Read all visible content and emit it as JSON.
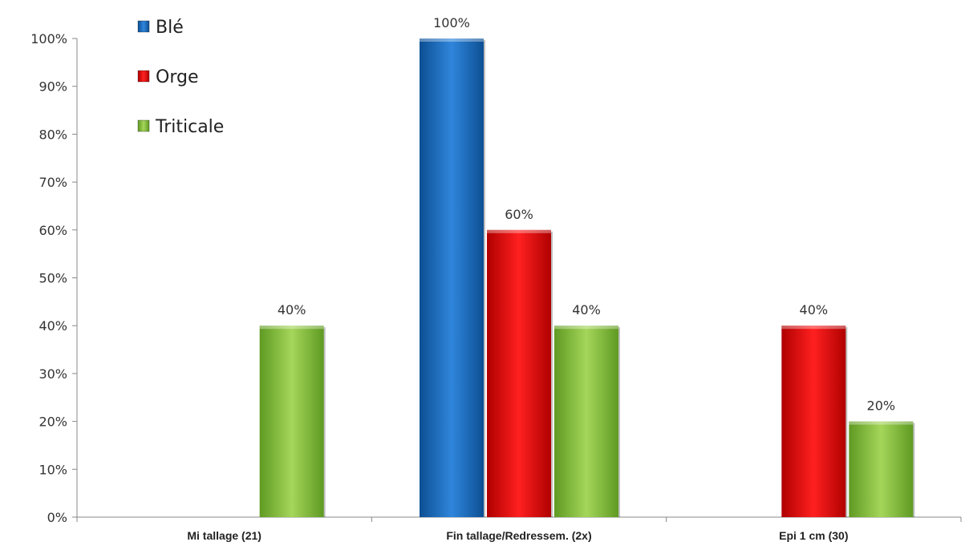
{
  "chart_data": {
    "type": "bar",
    "categories": [
      "Mi tallage (21)",
      "Fin tallage/Redressem. (2x)",
      "Epi 1 cm (30)"
    ],
    "series": [
      {
        "name": "Blé",
        "values": [
          0,
          100,
          0
        ],
        "labels": [
          "",
          "100%",
          ""
        ],
        "color": "#1f6fc0"
      },
      {
        "name": "Orge",
        "values": [
          0,
          60,
          40
        ],
        "labels": [
          "",
          "60%",
          "40%"
        ],
        "color": "#ee1111"
      },
      {
        "name": "Triticale",
        "values": [
          40,
          40,
          20
        ],
        "labels": [
          "40%",
          "40%",
          "20%"
        ],
        "color": "#8ec63f"
      }
    ],
    "y_ticks": [
      "0%",
      "10%",
      "20%",
      "30%",
      "40%",
      "50%",
      "60%",
      "70%",
      "80%",
      "90%",
      "100%"
    ],
    "ylim": [
      0,
      100
    ],
    "legend_position": "top-left",
    "grid": false
  }
}
